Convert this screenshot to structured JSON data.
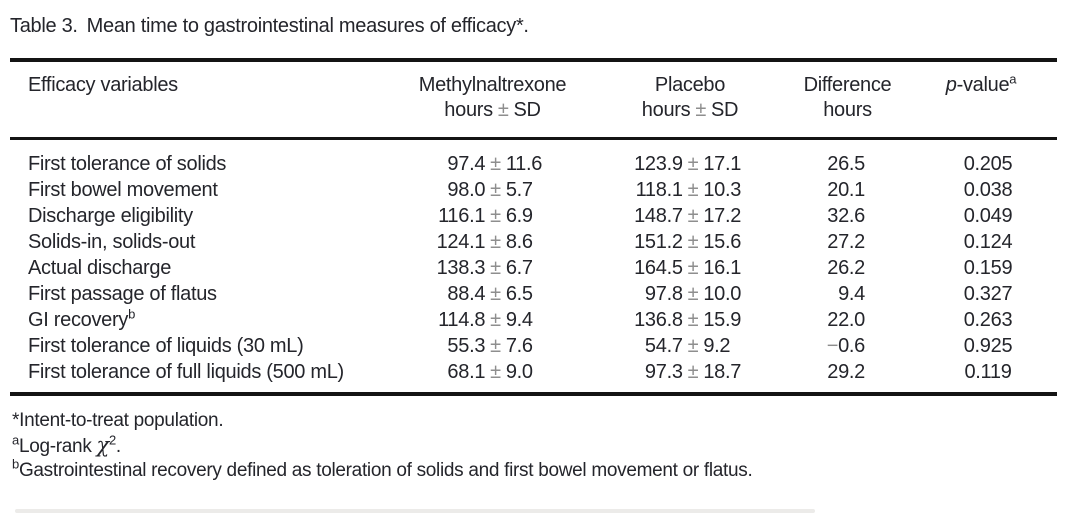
{
  "colors": {
    "text": "#24252b",
    "rule": "#141414",
    "plus_minus": "#8e8e8e",
    "background": "#ffffff"
  },
  "title": {
    "label": "Table 3.",
    "text": "Mean time to gastrointestinal measures of efficacy*."
  },
  "table": {
    "plus_minus": "±",
    "header": {
      "efficacy": "Efficacy variables",
      "drug_line1": "Methylnaltrexone",
      "placebo_line1": "Placebo",
      "diff_line1": "Difference",
      "units_hours": "hours",
      "units_sd": "SD",
      "pvalue_italic": "p",
      "pvalue_rest": "-value",
      "pvalue_sup": "a"
    },
    "rows": [
      {
        "variable": "First tolerance of solids",
        "variable_sup": "",
        "drug_mean": "97.4",
        "drug_sd": "11.6",
        "placebo_mean": "123.9",
        "placebo_sd": "17.1",
        "difference": "26.5",
        "p_value": "0.205"
      },
      {
        "variable": "First bowel movement",
        "variable_sup": "",
        "drug_mean": "98.0",
        "drug_sd": "5.7",
        "placebo_mean": "118.1",
        "placebo_sd": "10.3",
        "difference": "20.1",
        "p_value": "0.038"
      },
      {
        "variable": "Discharge eligibility",
        "variable_sup": "",
        "drug_mean": "116.1",
        "drug_sd": "6.9",
        "placebo_mean": "148.7",
        "placebo_sd": "17.2",
        "difference": "32.6",
        "p_value": "0.049"
      },
      {
        "variable": "Solids-in, solids-out",
        "variable_sup": "",
        "drug_mean": "124.1",
        "drug_sd": "8.6",
        "placebo_mean": "151.2",
        "placebo_sd": "15.6",
        "difference": "27.2",
        "p_value": "0.124"
      },
      {
        "variable": "Actual discharge",
        "variable_sup": "",
        "drug_mean": "138.3",
        "drug_sd": "6.7",
        "placebo_mean": "164.5",
        "placebo_sd": "16.1",
        "difference": "26.2",
        "p_value": "0.159"
      },
      {
        "variable": "First passage of flatus",
        "variable_sup": "",
        "drug_mean": "88.4",
        "drug_sd": "6.5",
        "placebo_mean": "97.8",
        "placebo_sd": "10.0",
        "difference": "9.4",
        "p_value": "0.327"
      },
      {
        "variable": "GI recovery",
        "variable_sup": "b",
        "drug_mean": "114.8",
        "drug_sd": "9.4",
        "placebo_mean": "136.8",
        "placebo_sd": "15.9",
        "difference": "22.0",
        "p_value": "0.263"
      },
      {
        "variable": "First tolerance of liquids (30 mL)",
        "variable_sup": "",
        "drug_mean": "55.3",
        "drug_sd": "7.6",
        "placebo_mean": "54.7",
        "placebo_sd": "9.2",
        "difference": "−0.6",
        "p_value": "0.925"
      },
      {
        "variable": "First tolerance of full liquids (500 mL)",
        "variable_sup": "",
        "drug_mean": "68.1",
        "drug_sd": "9.0",
        "placebo_mean": "97.3",
        "placebo_sd": "18.7",
        "difference": "29.2",
        "p_value": "0.119"
      }
    ]
  },
  "footnotes": {
    "itt": "*Intent-to-treat population.",
    "a_sup": "a",
    "a_text": "Log-rank ",
    "a_chi": "χ",
    "a_chi_sup": "2",
    "a_period": ".",
    "b_sup": "b",
    "b_text": "Gastrointestinal recovery defined as toleration of solids and first bowel movement or flatus."
  }
}
